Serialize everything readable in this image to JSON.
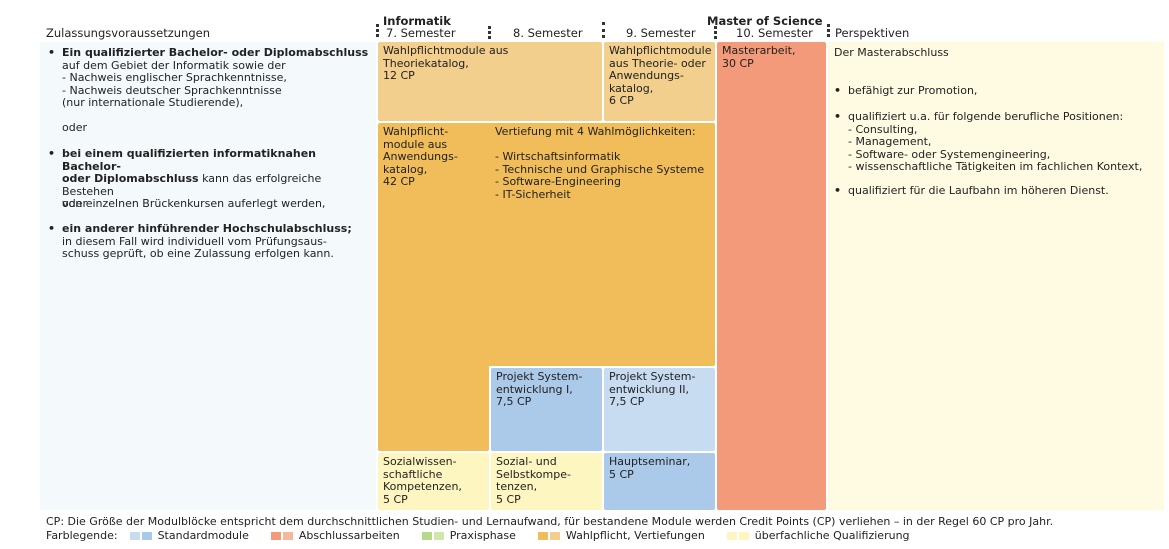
{
  "headers": {
    "left": "Zulassungsvoraussetzungen",
    "informatik": "Informatik",
    "sem7": "7. Semester",
    "sem8": "8. Semester",
    "sem9": "9. Semester",
    "master": "Master of Science",
    "sem10": "10. Semester",
    "right": "Perspektiven"
  },
  "left": {
    "item1_bold": "Ein qualifizierter Bachelor- oder Diplomabschluss",
    "item1_text": "auf dem Gebiet der Informatik sowie der\n- Nachweis englischer Sprachkenntnisse,\n- Nachweis deutscher Sprachkenntnisse\n   (nur internationale Studierende),",
    "oder1": "oder",
    "item2_bold": "bei einem qualifizierten informatiknahen Bachelor-\noder Diplomabschluss",
    "item2_text": " kann das erfolgreiche Bestehen\nvon einzelnen Brückenkursen auferlegt werden,",
    "oder2": "oder",
    "item3_bold": "ein anderer hinführender Hochschulabschluss;",
    "item3_text": "in diesem Fall wird individuell vom Prüfungsaus-\nschuss geprüft, ob eine Zulassung erfolgen kann."
  },
  "blocks": {
    "theorie": "Wahlpflichtmodule aus\nTheoriekatalog,\n12 CP",
    "theorie_anw": "Wahlpflichtmodule\naus Theorie- oder\nAnwendungs-\nkatalog,\n6 CP",
    "master": "Masterarbeit,\n30 CP",
    "anwendung": "Wahlpflicht-\nmodule aus\nAnwendungs-\nkatalog,\n42 CP",
    "vertiefung": "Vertiefung mit 4 Wahlmöglichkeiten:\n\n- Wirtschaftsinformatik\n- Technische und Graphische Systeme\n- Software-Engineering\n- IT-Sicherheit",
    "projekt1": "Projekt System-\nentwicklung I,\n7,5 CP",
    "projekt2": "Projekt System-\nentwicklung II,\n7,5 CP",
    "sozialwiss": "Sozialwissen-\nschaftliche\nKompetenzen,\n5 CP",
    "sozial_selbst": "Sozial- und\nSelbstkompe-\ntenzen,\n5 CP",
    "hauptseminar": "Hauptseminar,\n5 CP"
  },
  "right": {
    "intro": "Der Masterabschluss",
    "p1": "befähigt zur Promotion,",
    "p2": "qualifiziert u.a. für folgende berufliche Positionen:\n - Consulting,\n - Management,\n - Software- oder Systemengineering,\n - wissenschaftliche Tätigkeiten im fachlichen Kontext,",
    "p3": "qualifiziert für die Laufbahn im höheren Dienst."
  },
  "footer": {
    "note": "CP: Die Größe der Modulblöcke entspricht dem durchschnittlichen Studien- und Lernaufwand, für bestandene Module werden Credit Points (CP) verliehen – in der Regel 60 CP pro Jahr.",
    "legend_title": "Farblegende:",
    "legend": [
      {
        "label": "Standardmodule",
        "colors": [
          "#c7dbf1",
          "#abc9e8"
        ]
      },
      {
        "label": "Abschlussarbeiten",
        "colors": [
          "#f39a7a",
          "#f7b89a"
        ]
      },
      {
        "label": "Praxisphase",
        "colors": [
          "#b7d98a",
          "#cfe6ad"
        ]
      },
      {
        "label": "Wahlpflicht, Vertiefungen",
        "colors": [
          "#f0bd5a",
          "#f2cf8c"
        ]
      },
      {
        "label": "überfachliche Qualifizierung",
        "colors": [
          "#fef6c1",
          "#fef6c1"
        ]
      }
    ]
  }
}
